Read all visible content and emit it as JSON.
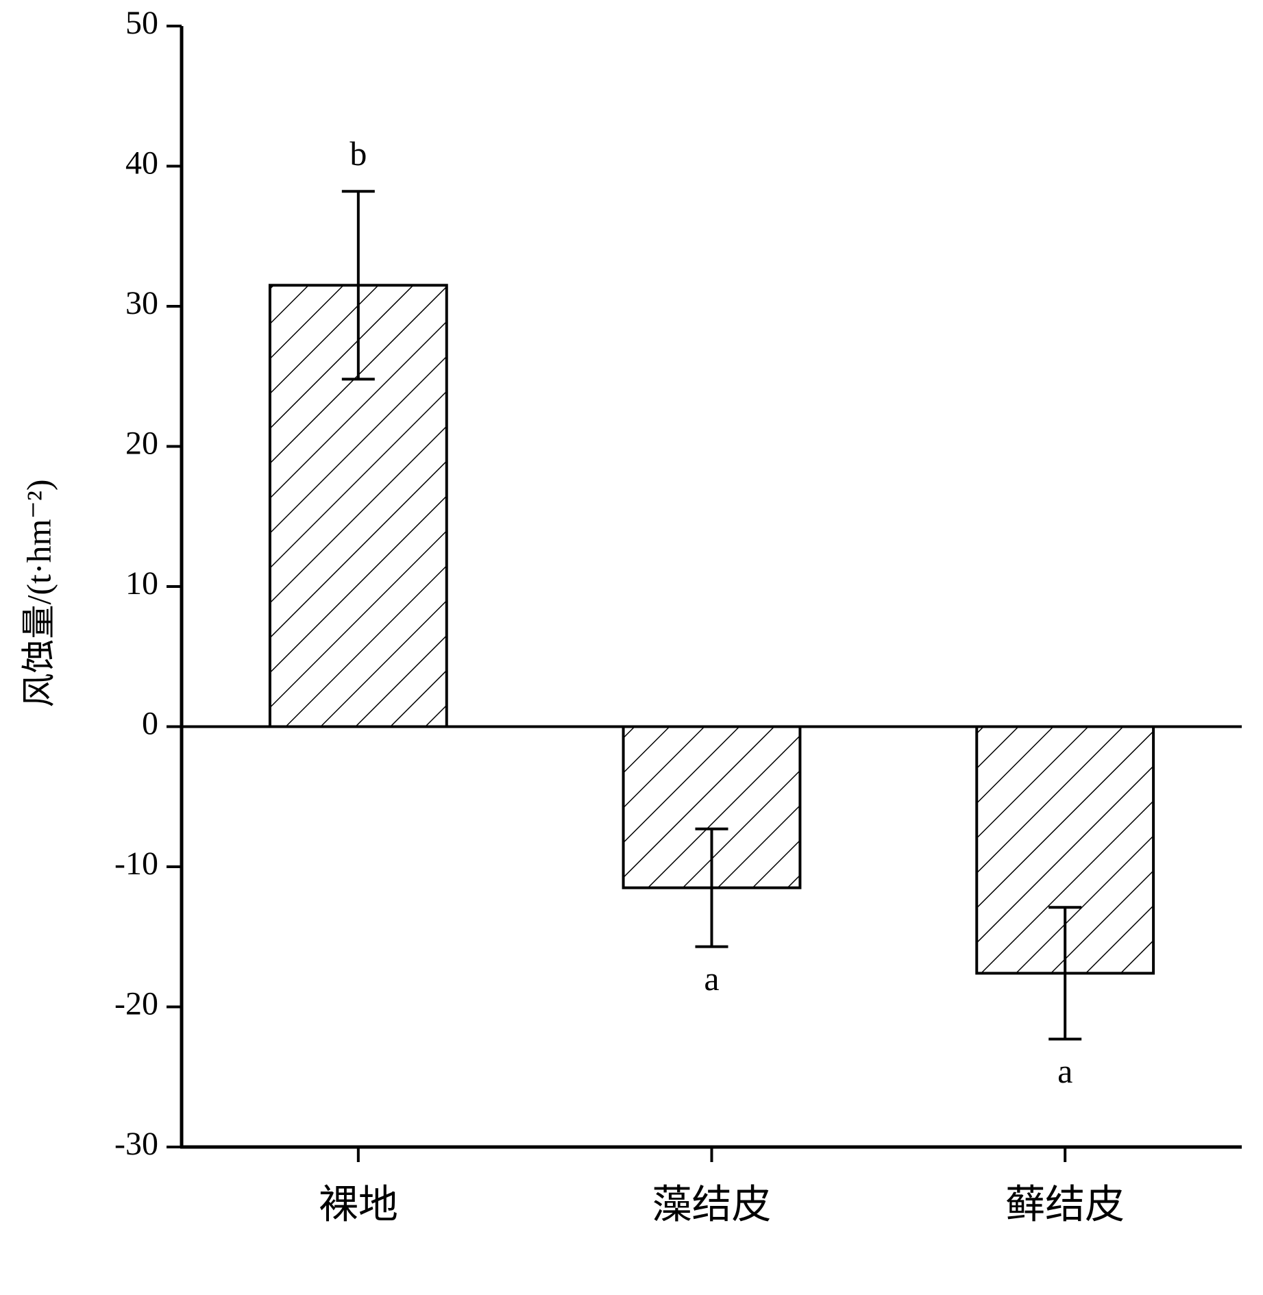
{
  "chart_data": {
    "type": "bar",
    "y_label": "风蚀量/(t·hm⁻²)",
    "categories": [
      "裸地",
      "藻结皮",
      "藓结皮"
    ],
    "values": [
      31.5,
      -11.5,
      -17.6
    ],
    "errors": [
      6.7,
      4.2,
      4.7
    ],
    "annotations": [
      "b",
      "a",
      "a"
    ],
    "color": "#000000",
    "ylim": [
      -30,
      50
    ],
    "yticks": [
      -30,
      -20,
      -10,
      0,
      10,
      20,
      30,
      40,
      50
    ],
    "grid": false
  }
}
